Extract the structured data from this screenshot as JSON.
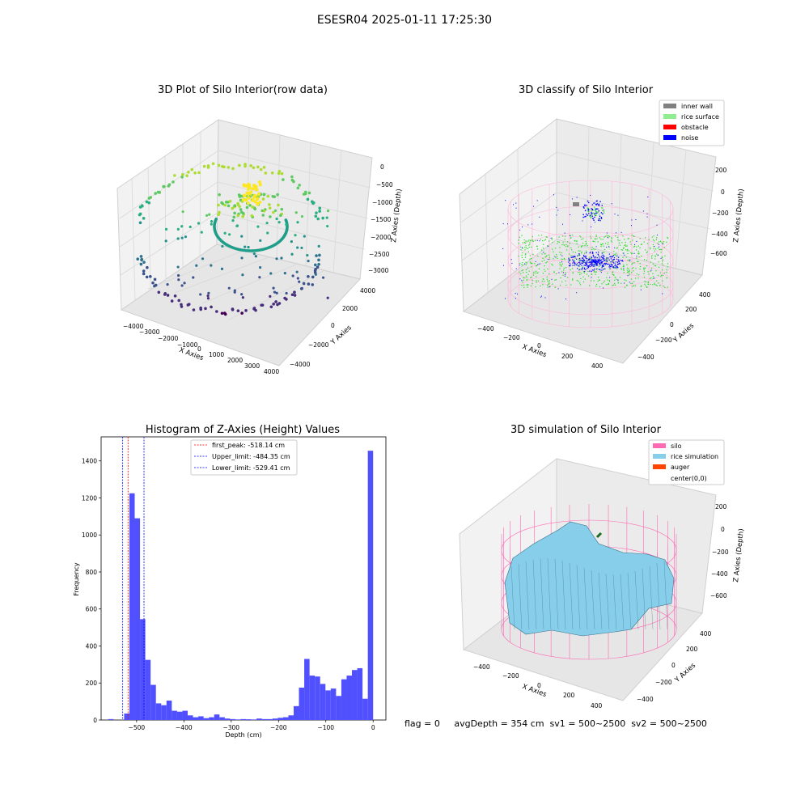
{
  "figure": {
    "title": "ESESR04 2025-01-11 17:25:30"
  },
  "status_line": "flag = 0     avgDepth = 354 cm  sv1 = 500~2500  sv2 = 500~2500",
  "colors": {
    "histogram_bar": "#5050ff",
    "first_peak_line": "#ff0000",
    "limit_lines": "#0000ff",
    "inner_wall": "#808080",
    "rice_surface": "#90ee90",
    "obstacle": "#ff0000",
    "noise": "#0000ff",
    "silo": "#ff69b4",
    "rice_simulation": "#87ceeb",
    "auger": "#ff4500"
  },
  "chart_data": [
    {
      "type": "scatter",
      "title": "3D Plot of Silo Interior(row data)",
      "xlabel": "X Axies",
      "ylabel": "Y Axies",
      "zlabel": "Z Axies (Depth)",
      "xticks": [
        "−4000",
        "−3000",
        "−2000",
        "−1000",
        "0",
        "1000",
        "2000",
        "3000",
        "4000"
      ],
      "yticks": [
        "−4000",
        "−2000",
        "0",
        "2000",
        "4000"
      ],
      "zticks": [
        "0",
        "−500",
        "−1000",
        "−1500",
        "−2000",
        "−2500",
        "−3000"
      ],
      "colormap": "viridis"
    },
    {
      "type": "scatter",
      "title": "3D classify of Silo Interior",
      "xlabel": "X Axies",
      "ylabel": "Y Axies",
      "zlabel": "Z Axies (Depth)",
      "xticks": [
        "−400",
        "−200",
        "0",
        "200",
        "400"
      ],
      "yticks": [
        "−400",
        "−200",
        "0",
        "200",
        "400"
      ],
      "zticks": [
        "200",
        "0",
        "−200",
        "−400",
        "−600"
      ],
      "legend": [
        "inner wall",
        "rice surface",
        "obstacle",
        "noise"
      ],
      "legend_position": "top-right"
    },
    {
      "type": "bar",
      "title": "Histogram of Z-Axies (Height) Values",
      "xlabel": "Depth (cm)",
      "ylabel": "Frequency",
      "xlim": [
        -575,
        27
      ],
      "ylim": [
        0,
        1530
      ],
      "xticks": [
        -500,
        -400,
        -300,
        -200,
        -100,
        0
      ],
      "xtick_labels": [
        "−500",
        "−400",
        "−300",
        "−200",
        "−100",
        "0"
      ],
      "yticks": [
        0,
        200,
        400,
        600,
        800,
        1000,
        1200,
        1400
      ],
      "bin_start": -560,
      "bin_width": 11.2,
      "values": [
        5,
        0,
        0,
        35,
        1225,
        1090,
        545,
        325,
        190,
        90,
        80,
        105,
        50,
        45,
        50,
        25,
        15,
        20,
        10,
        15,
        30,
        15,
        8,
        5,
        3,
        5,
        4,
        3,
        8,
        5,
        5,
        8,
        12,
        15,
        25,
        75,
        175,
        330,
        240,
        235,
        195,
        160,
        170,
        130,
        220,
        240,
        270,
        280,
        115,
        1455
      ],
      "vlines": [
        {
          "label": "first_peak: -518.14 cm",
          "x": -518.14,
          "color": "#ff0000"
        },
        {
          "label": "Upper_limit: -484.35 cm",
          "x": -484.35,
          "color": "#0000ff"
        },
        {
          "label": "Lower_limit: -529.41 cm",
          "x": -529.41,
          "color": "#0000ff"
        }
      ],
      "legend_position": "top-center"
    },
    {
      "type": "area",
      "title": "3D simulation of Silo Interior",
      "xlabel": "X Axies",
      "ylabel": "Y Axies",
      "zlabel": "Z Axies (Depth)",
      "xticks": [
        "−400",
        "−200",
        "0",
        "200",
        "400"
      ],
      "yticks": [
        "−400",
        "−200",
        "0",
        "200",
        "400"
      ],
      "zticks": [
        "200",
        "0",
        "−200",
        "−400",
        "−600"
      ],
      "legend": [
        "silo",
        "rice simulation",
        "auger",
        "center(0,0)"
      ],
      "legend_position": "top-right"
    }
  ]
}
